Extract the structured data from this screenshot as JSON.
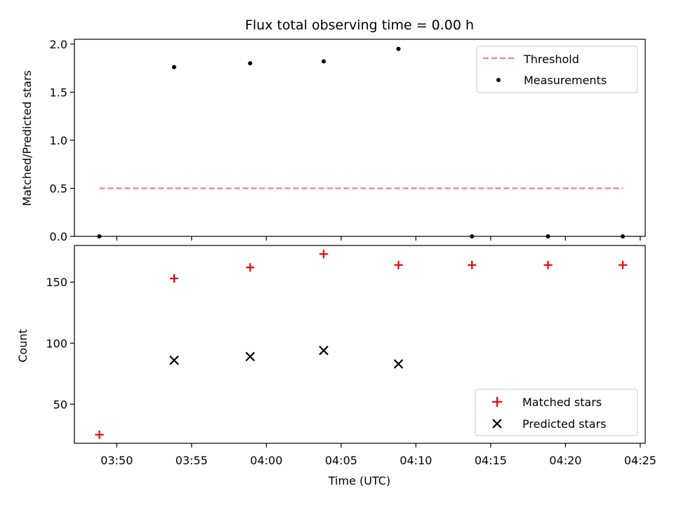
{
  "chart_data": [
    {
      "type": "scatter",
      "title": "Flux total observing time = 0.00 h",
      "xlabel": "",
      "ylabel": "Matched/Predicted stars",
      "xlim": [
        "03:47:10",
        "04:25:20"
      ],
      "ylim": [
        0,
        2.05
      ],
      "yticks": [
        0.0,
        0.5,
        1.0,
        1.5,
        2.0
      ],
      "ytick_labels": [
        "0.0",
        "0.5",
        "1.0",
        "1.5",
        "2.0"
      ],
      "grid": false,
      "legend_position": "top-right",
      "series": [
        {
          "name": "Threshold",
          "kind": "line",
          "style": "dashed",
          "color": "#ff7f7f",
          "x": [
            "03:48:50",
            "04:23:50"
          ],
          "y": [
            0.5,
            0.5
          ]
        },
        {
          "name": "Measurements",
          "kind": "scatter",
          "marker": "dot",
          "color": "#000000",
          "x": [
            "03:48:50",
            "03:53:50",
            "03:58:55",
            "04:03:50",
            "04:08:50",
            "04:13:45",
            "04:18:50",
            "04:23:50"
          ],
          "y": [
            0.0,
            1.76,
            1.8,
            1.82,
            1.95,
            0.0,
            0.0,
            0.0
          ]
        }
      ]
    },
    {
      "type": "scatter",
      "title": "",
      "xlabel": "Time (UTC)",
      "ylabel": "Count",
      "xlim": [
        "03:47:10",
        "04:25:20"
      ],
      "ylim": [
        18,
        180
      ],
      "xticks": [
        "03:50",
        "03:55",
        "04:00",
        "04:05",
        "04:10",
        "04:15",
        "04:20",
        "04:25"
      ],
      "yticks": [
        50,
        100,
        150
      ],
      "ytick_labels": [
        "50",
        "100",
        "150"
      ],
      "grid": false,
      "legend_position": "bottom-right",
      "series": [
        {
          "name": "Matched stars",
          "kind": "scatter",
          "marker": "plus",
          "color": "#ff0000",
          "x": [
            "03:48:50",
            "03:53:50",
            "03:58:55",
            "04:03:50",
            "04:08:50",
            "04:13:45",
            "04:18:50",
            "04:23:50"
          ],
          "y": [
            25,
            153,
            162,
            173,
            164,
            164,
            164,
            164
          ]
        },
        {
          "name": "Predicted stars",
          "kind": "scatter",
          "marker": "x",
          "color": "#000000",
          "x": [
            "03:53:50",
            "03:58:55",
            "04:03:50",
            "04:08:50"
          ],
          "y": [
            86,
            89,
            94,
            83
          ]
        }
      ]
    }
  ]
}
